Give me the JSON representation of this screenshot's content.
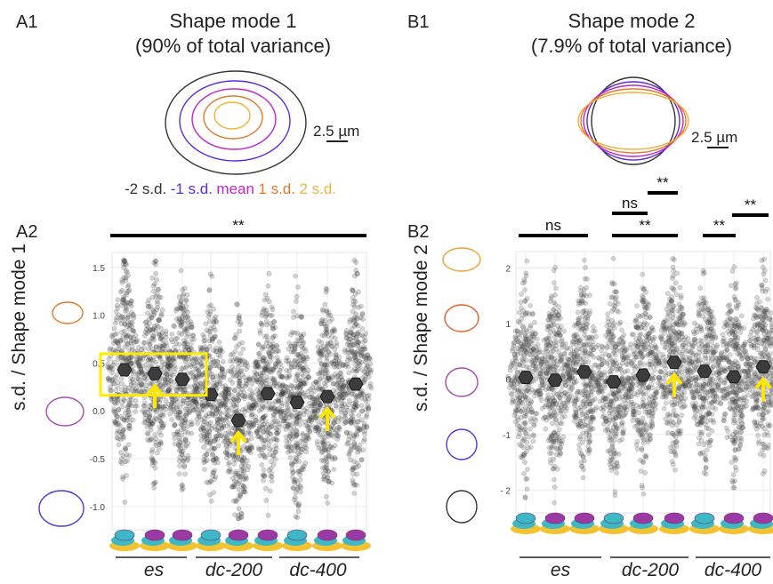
{
  "panels": {
    "A1": {
      "label": "A1",
      "title_line1": "Shape mode 1",
      "title_line2": "(90% of total variance)",
      "scale": "2.5 µm"
    },
    "B1": {
      "label": "B1",
      "title_line1": "Shape mode 2",
      "title_line2": "(7.9% of total variance)",
      "scale": "2.5 µm"
    },
    "A2": {
      "label": "A2",
      "ylabel": "s.d. / Shape mode 1"
    },
    "B2": {
      "label": "B2",
      "ylabel": "s.d. / Shape mode 2"
    }
  },
  "legend": [
    {
      "text": "-2 s.d.",
      "color": "#333333"
    },
    {
      "text": "-1 s.d.",
      "color": "#5b2bd6"
    },
    {
      "text": "mean",
      "color": "#c026c9"
    },
    {
      "text": "1 s.d.",
      "color": "#e07a2a"
    },
    {
      "text": "2 s.d.",
      "color": "#f0b23a"
    }
  ],
  "colors": {
    "points": "#555555",
    "median": "#3c3c3c",
    "highlight": "#ffea00",
    "arrow": "#ffe600"
  },
  "chart_data": [
    {
      "type": "scatter",
      "subtype": "beeswarm",
      "panel": "A2",
      "ylabel": "s.d. / Shape mode 1",
      "ylim": [
        -1.15,
        1.6
      ],
      "yticks": [
        -1.0,
        -0.5,
        0.0,
        0.5,
        1.0,
        1.5
      ],
      "ytick_labels": [
        "-1.0",
        "-0.5",
        "0.0",
        "0.5",
        "1.0",
        "1.5"
      ],
      "groups": [
        "es",
        "dc-200",
        "dc-400"
      ],
      "categories": [
        "es-1",
        "es-2",
        "es-3",
        "dc-200-1",
        "dc-200-2",
        "dc-200-3",
        "dc-400-1",
        "dc-400-2",
        "dc-400-3"
      ],
      "medians": [
        0.43,
        0.39,
        0.33,
        0.17,
        -0.1,
        0.18,
        0.09,
        0.15,
        0.28
      ],
      "highlight_box_categories": [
        "es-1",
        "es-2",
        "es-3"
      ],
      "arrows_at": [
        "es-2",
        "dc-200-2",
        "dc-400-2"
      ],
      "significance": [
        {
          "from": "es-1",
          "to": "dc-400-3",
          "label": "**"
        }
      ]
    },
    {
      "type": "scatter",
      "subtype": "beeswarm",
      "panel": "B2",
      "ylabel": "s.d. / Shape mode 2",
      "ylim": [
        -2.25,
        2.2
      ],
      "yticks": [
        -2,
        -1,
        0,
        1,
        2
      ],
      "ytick_labels": [
        "- 2",
        "-1",
        "0",
        "1",
        "2"
      ],
      "groups": [
        "es",
        "dc-200",
        "dc-400"
      ],
      "categories": [
        "es-1",
        "es-2",
        "es-3",
        "dc-200-1",
        "dc-200-2",
        "dc-200-3",
        "dc-400-1",
        "dc-400-2",
        "dc-400-3"
      ],
      "medians": [
        0.03,
        -0.02,
        0.13,
        -0.05,
        0.07,
        0.3,
        0.14,
        0.04,
        0.22
      ],
      "arrows_at": [
        "dc-200-3",
        "dc-400-3"
      ],
      "significance": [
        {
          "from": "es-1",
          "to": "es-3",
          "label": "ns"
        },
        {
          "from": "dc-200-1",
          "to": "dc-200-3",
          "label": "**"
        },
        {
          "from": "dc-200-1",
          "to": "dc-200-2",
          "label": "ns"
        },
        {
          "from": "dc-200-2",
          "to": "dc-200-3",
          "label": "**"
        },
        {
          "from": "dc-400-1",
          "to": "dc-400-2",
          "label": "**"
        },
        {
          "from": "dc-400-2",
          "to": "dc-400-3",
          "label": "**"
        }
      ]
    }
  ]
}
